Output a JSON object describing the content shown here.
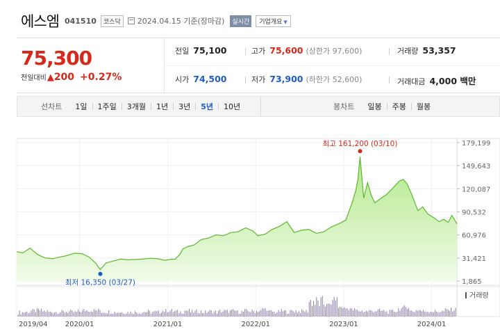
{
  "header": {
    "name": "에스엠",
    "code": "041510",
    "market": "코스닥",
    "base_date": "2024.04.15 기준(장마감)",
    "realtime": "실시간",
    "company_info": "기업개요"
  },
  "quote": {
    "price": "75,300",
    "change_label": "전일대비",
    "change_icon": "up-triangle-icon",
    "change_amount": "200",
    "change_percent": "+0.27%",
    "prev_close_label": "전일",
    "prev_close": "75,100",
    "high_label": "고가",
    "high": "75,600",
    "upper_limit": "(상한가 97,600)",
    "volume_label": "거래량",
    "volume": "53,357",
    "open_label": "시가",
    "open": "74,500",
    "low_label": "저가",
    "low": "73,900",
    "lower_limit": "(하한가 52,600)",
    "amount_label": "거래대금",
    "amount": "4,000 백만"
  },
  "toolbar": {
    "line_label": "선차트",
    "periods": [
      "1일",
      "1주일",
      "3개월",
      "1년",
      "3년",
      "5년",
      "10년"
    ],
    "active_period": "5년",
    "candle_label": "봉차트",
    "candles": [
      "일봉",
      "주봉",
      "월봉"
    ]
  },
  "colors": {
    "up": "#d6281b",
    "down": "#1e5bc4",
    "area_fill": "#c8f0a6",
    "area_line": "#5cb82c",
    "volume_bar": "#8a7aa8"
  },
  "chart_data": {
    "type": "area",
    "y_ticks": [
      "179,199",
      "149,643",
      "120,087",
      "90,532",
      "60,976",
      "31,421",
      "1,865"
    ],
    "ylim": [
      1865,
      179199
    ],
    "x_ticks": [
      "2019/04",
      "2020/01",
      "2021/01",
      "2022/01",
      "2023/01",
      "2024/01"
    ],
    "xlim": [
      "2019-04-15",
      "2024-04-15"
    ],
    "max_label": "최고 161,200 (03/10)",
    "max_point": {
      "x": "2023-03-10",
      "y": 161200
    },
    "min_label": "최저 16,350 (03/27)",
    "min_point": {
      "x": "2020-03-27",
      "y": 16350
    },
    "volume_label": "거래량",
    "series": [
      {
        "values": [
          [
            "2019-04-15",
            39500
          ],
          [
            "2019-05-10",
            38000
          ],
          [
            "2019-06-10",
            44000
          ],
          [
            "2019-07-10",
            36000
          ],
          [
            "2019-08-10",
            31500
          ],
          [
            "2019-09-10",
            30500
          ],
          [
            "2019-10-10",
            32500
          ],
          [
            "2019-11-10",
            34500
          ],
          [
            "2019-12-10",
            37500
          ],
          [
            "2020-01-10",
            37000
          ],
          [
            "2020-02-10",
            32500
          ],
          [
            "2020-03-10",
            24000
          ],
          [
            "2020-03-27",
            16350
          ],
          [
            "2020-04-20",
            25000
          ],
          [
            "2020-05-20",
            27500
          ],
          [
            "2020-06-20",
            30000
          ],
          [
            "2020-07-20",
            29000
          ],
          [
            "2020-08-20",
            29500
          ],
          [
            "2020-09-20",
            30000
          ],
          [
            "2020-10-20",
            31000
          ],
          [
            "2020-11-20",
            30500
          ],
          [
            "2020-12-20",
            28500
          ],
          [
            "2021-01-10",
            29500
          ],
          [
            "2021-02-01",
            30000
          ],
          [
            "2021-02-20",
            36000
          ],
          [
            "2021-03-05",
            43000
          ],
          [
            "2021-03-25",
            46000
          ],
          [
            "2021-04-20",
            48000
          ],
          [
            "2021-05-20",
            55000
          ],
          [
            "2021-06-20",
            57000
          ],
          [
            "2021-07-20",
            61000
          ],
          [
            "2021-08-20",
            60000
          ],
          [
            "2021-09-20",
            64000
          ],
          [
            "2021-10-20",
            65000
          ],
          [
            "2021-11-20",
            70000
          ],
          [
            "2021-12-20",
            66000
          ],
          [
            "2022-01-10",
            60000
          ],
          [
            "2022-02-10",
            62000
          ],
          [
            "2022-03-10",
            68000
          ],
          [
            "2022-04-10",
            72000
          ],
          [
            "2022-05-10",
            78000
          ],
          [
            "2022-06-10",
            64000
          ],
          [
            "2022-07-10",
            67000
          ],
          [
            "2022-08-10",
            68000
          ],
          [
            "2022-09-10",
            63000
          ],
          [
            "2022-10-10",
            65000
          ],
          [
            "2022-11-10",
            71000
          ],
          [
            "2022-12-10",
            75000
          ],
          [
            "2023-01-10",
            80000
          ],
          [
            "2023-02-05",
            102000
          ],
          [
            "2023-02-20",
            118000
          ],
          [
            "2023-03-01",
            132000
          ],
          [
            "2023-03-10",
            161200
          ],
          [
            "2023-03-25",
            108000
          ],
          [
            "2023-04-10",
            128000
          ],
          [
            "2023-04-25",
            112000
          ],
          [
            "2023-05-10",
            102000
          ],
          [
            "2023-06-05",
            108000
          ],
          [
            "2023-06-25",
            112000
          ],
          [
            "2023-07-15",
            118000
          ],
          [
            "2023-08-05",
            125000
          ],
          [
            "2023-08-20",
            130000
          ],
          [
            "2023-09-05",
            132000
          ],
          [
            "2023-09-20",
            127000
          ],
          [
            "2023-10-10",
            113000
          ],
          [
            "2023-11-05",
            92000
          ],
          [
            "2023-11-25",
            97000
          ],
          [
            "2023-12-15",
            88000
          ],
          [
            "2024-01-10",
            83000
          ],
          [
            "2024-02-01",
            78000
          ],
          [
            "2024-02-20",
            81000
          ],
          [
            "2024-03-10",
            77000
          ],
          [
            "2024-03-25",
            86000
          ],
          [
            "2024-04-15",
            75300
          ]
        ]
      }
    ]
  }
}
